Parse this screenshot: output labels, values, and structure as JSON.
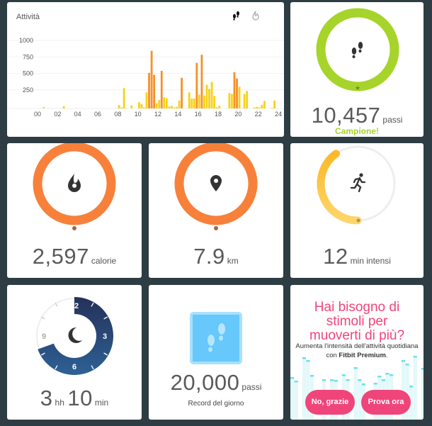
{
  "activity": {
    "title": "Attività",
    "toggle_icons": [
      "steps-icon",
      "calories-icon"
    ],
    "chart_data": {
      "type": "bar",
      "title": "Attività",
      "xlabel": "",
      "ylabel": "",
      "x_ticks": [
        "00",
        "02",
        "04",
        "06",
        "08",
        "10",
        "12",
        "14",
        "16",
        "18",
        "20",
        "22",
        "24"
      ],
      "y_ticks": [
        "1000",
        "750",
        "500",
        "250"
      ],
      "ylim": [
        0,
        1000
      ],
      "bin_minutes": 15,
      "active_threshold": 450,
      "colors": {
        "low": "#f7d31a",
        "high": "#f6912c"
      },
      "values": [
        0,
        0,
        20,
        0,
        0,
        0,
        0,
        0,
        0,
        0,
        35,
        0,
        0,
        0,
        0,
        0,
        0,
        0,
        0,
        0,
        0,
        0,
        0,
        0,
        0,
        0,
        0,
        0,
        0,
        0,
        0,
        0,
        50,
        15,
        310,
        5,
        0,
        45,
        0,
        0,
        95,
        65,
        15,
        245,
        540,
        875,
        510,
        80,
        130,
        570,
        170,
        155,
        30,
        40,
        15,
        25,
        120,
        465,
        0,
        0,
        245,
        150,
        150,
        690,
        210,
        815,
        195,
        360,
        295,
        400,
        190,
        20,
        40,
        0,
        0,
        0,
        235,
        220,
        550,
        455,
        330,
        0,
        220,
        265,
        0,
        0,
        15,
        25,
        15,
        55,
        115,
        0,
        0,
        10,
        120,
        0
      ]
    }
  },
  "steps": {
    "value": "10,457",
    "unit": "passi",
    "status": "Campione!",
    "progress": 1.0,
    "color": "#a6d42a"
  },
  "calories": {
    "value": "2,597",
    "unit": "calorie",
    "progress": 1.0,
    "color": "#f7813a"
  },
  "distance": {
    "value": "7.9",
    "unit": "km",
    "progress": 1.0,
    "color": "#f7813a"
  },
  "active": {
    "value": "12",
    "unit": "min intensi",
    "progress": 0.4,
    "color": "#fdc33a"
  },
  "sleep": {
    "hours": "3",
    "hours_unit": "hh",
    "minutes": "10",
    "minutes_unit": "min",
    "clock_labels": [
      "12",
      "3",
      "6",
      "9"
    ],
    "color": "#2b4a7e"
  },
  "record": {
    "value": "20,000",
    "unit": "passi",
    "label": "Record del giorno",
    "color": "#66c8fb"
  },
  "promo": {
    "title": "Hai bisogno di stimoli per muoverti di più?",
    "text_prefix": "Aumenta l'intensità dell'attività quotidiana con ",
    "text_bold": "Fitbit Premium",
    "text_suffix": ".",
    "decline_label": "No, grazie",
    "accept_label": "Prova ora",
    "accent": "#f0457a"
  }
}
